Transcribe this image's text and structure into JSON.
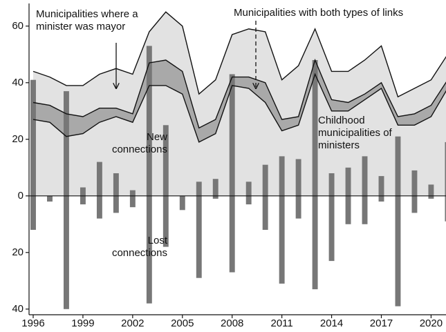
{
  "chart_data": {
    "type": "combo",
    "x": [
      1996,
      1997,
      1998,
      1999,
      2000,
      2001,
      2002,
      2003,
      2004,
      2005,
      2006,
      2007,
      2008,
      2009,
      2010,
      2011,
      2012,
      2013,
      2014,
      2015,
      2016,
      2017,
      2018,
      2019,
      2020,
      2021
    ],
    "xlim": [
      1995.75,
      2020.9
    ],
    "xticks": [
      1996,
      1999,
      2002,
      2005,
      2008,
      2011,
      2014,
      2017,
      2020
    ],
    "ylim": [
      -42,
      68
    ],
    "yticks": [
      {
        "value": -40,
        "label": "40"
      },
      {
        "value": -20,
        "label": "20"
      },
      0,
      20,
      40,
      60
    ],
    "area_color": "#e2e2e2",
    "band_color": "#a9a9a9",
    "line_color": "#111111",
    "series": [
      {
        "name": "Municipalities where a minister was mayor",
        "kind": "line",
        "values": [
          44,
          42,
          39,
          39,
          43,
          45,
          43,
          58,
          65,
          60,
          36,
          41,
          57,
          59,
          58,
          41,
          46,
          59,
          44,
          44,
          48,
          53,
          35,
          38,
          41,
          50
        ]
      },
      {
        "name": "Municipalities with both types of links",
        "kind": "line",
        "values": [
          33,
          32,
          29,
          28,
          31,
          31,
          29,
          47,
          48,
          44,
          24,
          27,
          42,
          42,
          40,
          27,
          28,
          48,
          34,
          33,
          36,
          40,
          28,
          29,
          32,
          41
        ]
      },
      {
        "name": "Childhood municipalities of ministers",
        "kind": "line",
        "values": [
          27,
          26,
          21,
          22,
          26,
          28,
          26,
          39,
          39,
          36,
          19,
          22,
          39,
          38,
          33,
          23,
          25,
          43,
          30,
          30,
          34,
          38,
          25,
          25,
          28,
          38
        ]
      },
      {
        "name": "New connections",
        "kind": "bar",
        "color": "#777777",
        "values": [
          41,
          0,
          37,
          3,
          12,
          8,
          2,
          53,
          25,
          0,
          5,
          6,
          43,
          5,
          11,
          14,
          13,
          48,
          8,
          10,
          14,
          7,
          21,
          9,
          4,
          19
        ]
      },
      {
        "name": "Lost connections",
        "kind": "bar",
        "color": "#777777",
        "values": [
          -12,
          -2,
          -40,
          -3,
          -8,
          -6,
          -4,
          -38,
          -18,
          -5,
          -29,
          -1,
          -27,
          -3,
          -12,
          -31,
          -8,
          -33,
          -23,
          -10,
          -10,
          -2,
          -39,
          -6,
          -1,
          -9
        ]
      }
    ]
  }
}
